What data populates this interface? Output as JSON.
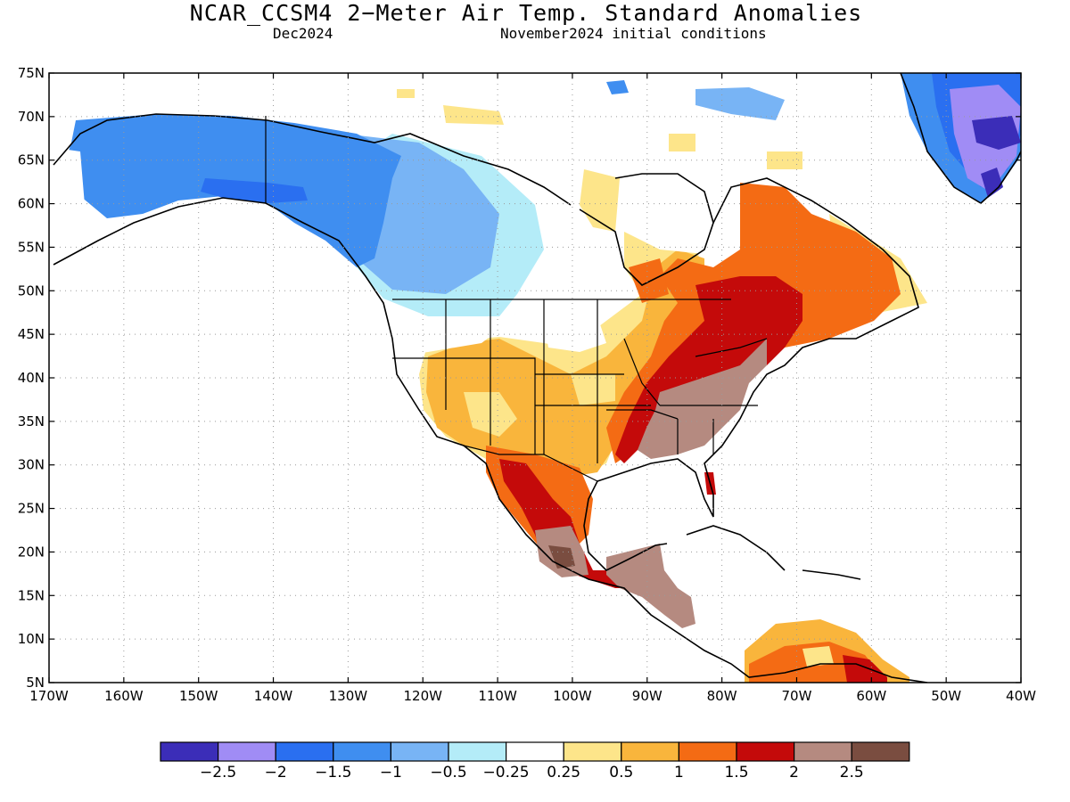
{
  "header": {
    "title": "NCAR_CCSM4 2−Meter Air Temp. Standard Anomalies",
    "target_month": "Dec2024",
    "init_conditions": "November2024 initial conditions"
  },
  "axes": {
    "lat_ticks": [
      "75N",
      "70N",
      "65N",
      "60N",
      "55N",
      "50N",
      "45N",
      "40N",
      "35N",
      "30N",
      "25N",
      "20N",
      "15N",
      "10N",
      "5N"
    ],
    "lon_ticks": [
      "170W",
      "160W",
      "150W",
      "140W",
      "130W",
      "120W",
      "110W",
      "100W",
      "90W",
      "80W",
      "70W",
      "60W",
      "50W",
      "40W"
    ],
    "lat_range": [
      5,
      75
    ],
    "lon_range": [
      -170,
      -40
    ],
    "grid": "dotted"
  },
  "colorbar": {
    "labels": [
      "−2.5",
      "−2",
      "−1.5",
      "−1",
      "−0.5",
      "−0.25",
      "0.25",
      "0.5",
      "1",
      "1.5",
      "2",
      "2.5"
    ],
    "colors": [
      "#3b2db8",
      "#a08cf5",
      "#2a6ff0",
      "#3f8ef0",
      "#78b4f5",
      "#b4ecf8",
      "#ffffff",
      "#fde58a",
      "#f9b53c",
      "#f46b14",
      "#c40a0a",
      "#b58a80",
      "#7a4d40"
    ]
  },
  "anomaly_regions": [
    {
      "name": "alaska-yukon",
      "value_class": "-1.5"
    },
    {
      "name": "western-canada",
      "value_class": "-1"
    },
    {
      "name": "greenland",
      "value_class": "-2"
    },
    {
      "name": "eastern-canada",
      "value_class": "1.5"
    },
    {
      "name": "northeast-us",
      "value_class": "2"
    },
    {
      "name": "southeast-us",
      "value_class": "2.5"
    },
    {
      "name": "southwest-us",
      "value_class": "0.5"
    },
    {
      "name": "mexico",
      "value_class": "2"
    },
    {
      "name": "central-america",
      "value_class": "2.5"
    },
    {
      "name": "northern-south-america",
      "value_class": "1"
    }
  ]
}
